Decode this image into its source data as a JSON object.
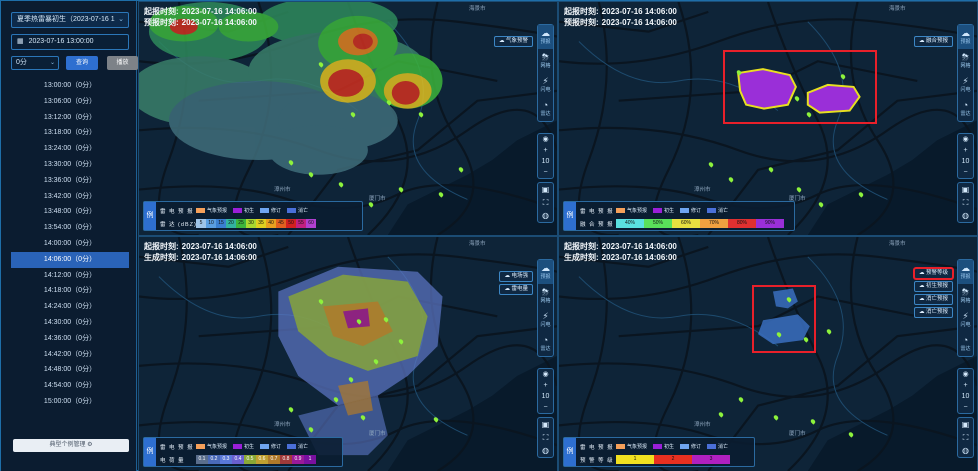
{
  "sidebar": {
    "type_select": {
      "value": "夏季热雷暴初生（2023-07-16 1",
      "caret": "⌄"
    },
    "date_input": {
      "icon": "calendar-icon",
      "value": "2023-07-16 13:00:00"
    },
    "offset_select": {
      "value": "0分",
      "caret": "⌄"
    },
    "query_button": "查询",
    "play_button": "播放",
    "times": [
      "13:00:00（0分）",
      "13:06:00（0分）",
      "13:12:00（0分）",
      "13:18:00（0分）",
      "13:24:00（0分）",
      "13:30:00（0分）",
      "13:36:00（0分）",
      "13:42:00（0分）",
      "13:48:00（0分）",
      "13:54:00（0分）",
      "14:00:00（0分）",
      "14:06:00（0分）",
      "14:12:00（0分）",
      "14:18:00（0分）",
      "14:24:00（0分）",
      "14:30:00（0分）",
      "14:36:00（0分）",
      "14:42:00（0分）",
      "14:48:00（0分）",
      "14:54:00（0分）",
      "15:00:00（0分）"
    ],
    "active_index": 11,
    "manage_button": "典型个例管理 ⚙"
  },
  "panels": {
    "tl": {
      "line1_label": "起报时刻:",
      "line1_value": "2023-07-16 14:06:00",
      "line2_label": "预报时刻:",
      "line2_value": "2023-07-16 14:06:00",
      "layer_buttons": [
        "气象预警"
      ],
      "legend_row1_label": "雷 电 预 报",
      "legend_row2_label": "雷 达 (dBZ)",
      "radar_values": [
        "5",
        "10",
        "15",
        "20",
        "25",
        "30",
        "35",
        "40",
        "45",
        "50",
        "55",
        "60"
      ]
    },
    "tr": {
      "line1_label": "起报时刻:",
      "line1_value": "2023-07-16 14:06:00",
      "line2_label": "预报时刻:",
      "line2_value": "2023-07-16 14:06:00",
      "layer_buttons": [
        "融合预报"
      ],
      "legend_row1_label": "雷 电 预 报",
      "legend_row2_label": "融 合 预 报",
      "fusion_values": [
        "40%",
        "50%",
        "60%",
        "70%",
        "80%",
        "90%"
      ]
    },
    "bl": {
      "line1_label": "起报时刻:",
      "line1_value": "2023-07-16 14:06:00",
      "line2_label": "生成时刻:",
      "line2_value": "2023-07-16 14:06:00",
      "layer_buttons": [
        "电场强",
        "雷电量"
      ],
      "legend_row1_label": "雷 电 预 报",
      "legend_row2_label": "电   荷   量",
      "charge_values": [
        "0.1",
        "0.2",
        "0.3",
        "0.4",
        "0.5",
        "0.6",
        "0.7",
        "0.8",
        "0.9",
        "1"
      ]
    },
    "br": {
      "line1_label": "起报时刻:",
      "line1_value": "2023-07-16 14:06:00",
      "line2_label": "生成时刻:",
      "line2_value": "2023-07-16 14:06:00",
      "layer_buttons": [
        "预警等级",
        "初生预报",
        "消亡预报",
        "消亡预报"
      ],
      "legend_row1_label": "雷 电 预 报",
      "legend_row2_label": "预 警 等 级",
      "warn_values": [
        "1",
        "2",
        "3"
      ]
    }
  },
  "legend_common": {
    "lead": "例",
    "items": [
      "气象预报",
      "初生",
      "修订",
      "消亡"
    ],
    "colors": [
      "#f5a05a",
      "#9a1fd8",
      "#6fa5f0",
      "#4a6fd8"
    ]
  },
  "toolbar": {
    "items": [
      {
        "icon": "cloud-icon",
        "label": "预报"
      },
      {
        "icon": "storm-icon",
        "label": "网格"
      },
      {
        "icon": "lightning-icon",
        "label": "闪电"
      },
      {
        "icon": "radar-icon",
        "label": "雷达"
      }
    ],
    "zoom_level": "10",
    "zoom_in": "+",
    "zoom_out": "−",
    "eye": "◉",
    "extra": [
      "▣",
      "⛶",
      "◍"
    ]
  },
  "map_labels": {
    "city1": "漳州市",
    "city2": "厦门市",
    "city3": "海景市"
  },
  "colors": {
    "accent": "#2e6fd0",
    "highlight": "#e8202a"
  }
}
